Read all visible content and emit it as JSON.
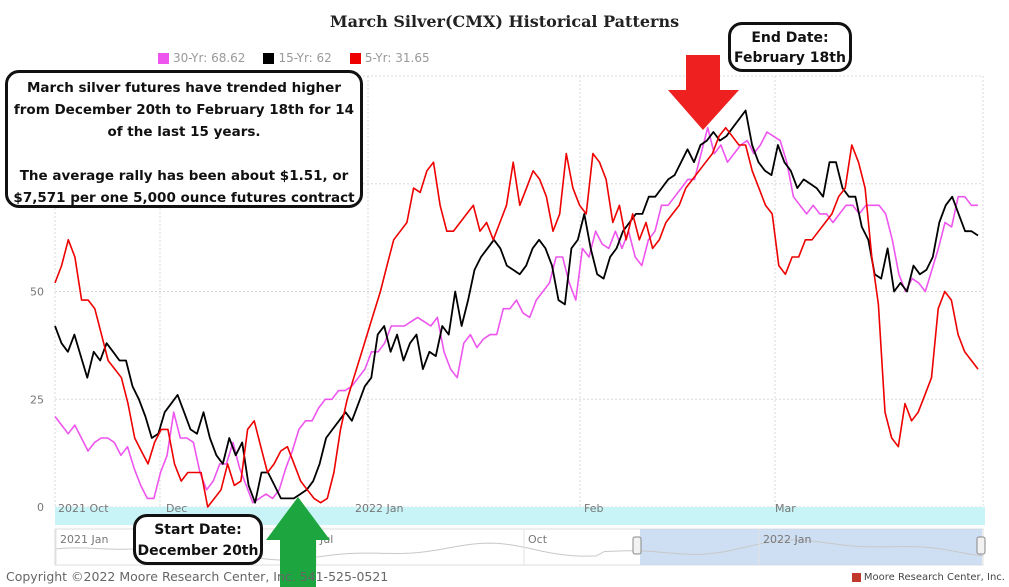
{
  "title": "March Silver(CMX) Historical Patterns",
  "legend": [
    {
      "label": "30-Yr: 68.62",
      "color": "#ee55ee"
    },
    {
      "label": "15-Yr: 62",
      "color": "#000000"
    },
    {
      "label": "5-Yr: 31.65",
      "color": "#ee0000"
    }
  ],
  "note": {
    "line1": "March silver futures have trended higher from December 20th to February 18th for 14 of the last 15 years.",
    "line2": "The average rally has been about $1.51, or $7,571 per one 5,000 ounce futures contract"
  },
  "end_callout": {
    "line1": "End Date:",
    "line2": "February 18th"
  },
  "start_callout": {
    "line1": "Start Date:",
    "line2": "December 20th"
  },
  "copyright": "Copyright ©2022 Moore Research Center, Inc. 541-525-0521",
  "brand": "Moore Research Center, Inc.",
  "chart_data": {
    "type": "line",
    "title": "March Silver(CMX) Historical Patterns",
    "ylim": [
      0,
      100
    ],
    "y_ticks": [
      0,
      25,
      50
    ],
    "grid": true,
    "legend_placement": "top",
    "x_ticks": [
      "2021 Oct",
      "Dec",
      "2022 Jan",
      "Feb",
      "Mar"
    ],
    "navigator_ticks": [
      "2021 Jan",
      "Jul",
      "Oct",
      "2022 Jan"
    ],
    "series": [
      {
        "name": "30-Yr: 68.62",
        "color": "#ee55ee",
        "values": [
          21,
          19,
          17,
          19,
          16,
          13,
          15,
          16,
          16,
          15,
          12,
          14,
          9,
          5,
          2,
          2,
          8,
          12,
          22,
          16,
          16,
          15,
          8,
          4,
          6,
          10,
          10,
          15,
          9,
          5,
          1,
          2,
          3,
          2,
          4,
          9,
          13,
          18,
          20,
          20,
          23,
          25,
          25,
          27,
          27,
          28,
          30,
          32,
          36,
          36,
          38,
          42,
          42,
          42,
          43,
          44,
          43,
          42,
          44,
          36,
          32,
          30,
          38,
          40,
          37,
          39,
          40,
          40,
          46,
          46,
          48,
          45,
          44,
          48,
          50,
          52,
          58,
          58,
          52,
          48,
          60,
          58,
          64,
          61,
          60,
          64,
          60,
          64,
          58,
          56,
          62,
          64,
          70,
          70,
          72,
          74,
          76,
          76,
          82,
          88,
          82,
          84,
          80,
          82,
          84,
          85,
          82,
          84,
          87,
          86,
          85,
          80,
          72,
          70,
          68,
          70,
          68,
          68,
          66,
          68,
          70,
          70,
          68,
          70,
          70,
          70,
          68,
          62,
          54,
          50,
          53,
          52,
          50,
          55,
          60,
          66,
          65,
          72,
          72,
          70,
          70
        ]
      },
      {
        "name": "15-Yr: 62",
        "color": "#000000",
        "values": [
          42,
          38,
          36,
          40,
          35,
          30,
          36,
          34,
          38,
          36,
          34,
          34,
          28,
          25,
          21,
          16,
          17,
          22,
          24,
          26,
          22,
          18,
          17,
          22,
          16,
          12,
          10,
          16,
          12,
          15,
          5,
          1,
          8,
          8,
          5,
          2,
          2,
          2,
          3,
          4,
          6,
          10,
          16,
          18,
          20,
          22,
          20,
          24,
          28,
          30,
          40,
          42,
          36,
          40,
          34,
          38,
          40,
          32,
          36,
          35,
          42,
          40,
          50,
          42,
          48,
          55,
          58,
          60,
          62,
          60,
          56,
          55,
          54,
          56,
          60,
          62,
          60,
          56,
          48,
          47,
          60,
          62,
          68,
          60,
          54,
          53,
          58,
          60,
          64,
          66,
          68,
          68,
          72,
          72,
          74,
          76,
          77,
          80,
          83,
          80,
          84,
          85,
          87,
          85,
          86,
          88,
          90,
          92,
          84,
          80,
          78,
          77,
          84,
          80,
          78,
          74,
          76,
          75,
          74,
          72,
          80,
          80,
          74,
          72,
          72,
          65,
          62,
          54,
          53,
          60,
          50,
          52,
          50,
          56,
          54,
          55,
          58,
          66,
          70,
          72,
          68,
          64,
          64,
          63
        ]
      },
      {
        "name": "5-Yr: 31.65",
        "color": "#ee0000",
        "values": [
          52,
          56,
          62,
          58,
          48,
          48,
          46,
          40,
          34,
          32,
          30,
          24,
          16,
          13,
          10,
          15,
          18,
          18,
          10,
          6,
          8,
          8,
          8,
          0,
          2,
          4,
          10,
          5,
          6,
          18,
          20,
          14,
          8,
          10,
          13,
          14,
          10,
          6,
          4,
          2,
          1,
          2,
          8,
          18,
          25,
          30,
          35,
          40,
          45,
          50,
          56,
          62,
          64,
          66,
          74,
          73,
          78,
          80,
          70,
          64,
          64,
          66,
          68,
          70,
          64,
          66,
          62,
          66,
          70,
          80,
          70,
          74,
          78,
          76,
          72,
          64,
          68,
          82,
          74,
          70,
          68,
          82,
          80,
          76,
          66,
          70,
          62,
          68,
          62,
          66,
          60,
          62,
          66,
          68,
          70,
          74,
          76,
          78,
          80,
          82,
          86,
          88,
          86,
          84,
          84,
          78,
          74,
          70,
          68,
          56,
          54,
          58,
          58,
          62,
          62,
          64,
          66,
          68,
          72,
          74,
          84,
          80,
          74,
          58,
          47,
          22,
          16,
          14,
          24,
          20,
          22,
          26,
          30,
          46,
          50,
          48,
          40,
          36,
          34,
          32
        ]
      }
    ]
  }
}
